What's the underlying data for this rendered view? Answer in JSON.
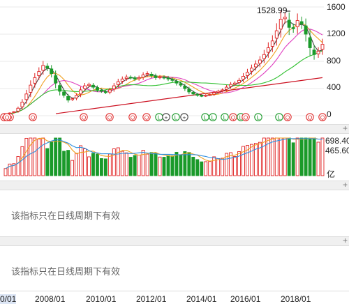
{
  "colors": {
    "up": "#e02020",
    "down": "#1a9a2a",
    "ma5": "#444444",
    "ma10": "#f0a020",
    "ma20": "#e040c0",
    "ma60": "#30c030",
    "trend": "#cc1020",
    "vol_line1": "#f0a020",
    "vol_line2": "#3090e0"
  },
  "price_axis": {
    "ticks": [
      "1600",
      "1200",
      "800",
      "400",
      "0"
    ]
  },
  "high_callout": "1528.99",
  "volume_axis": {
    "ticks": [
      "698.40",
      "465.60"
    ],
    "unit": "亿"
  },
  "indicator_panels": [
    {
      "notice": "该指标只在日线周期下有效"
    },
    {
      "notice": "该指标只在日线周期下有效"
    }
  ],
  "x_axis": {
    "first_partial": "0/01",
    "labels": [
      "2008/01",
      "2010/01",
      "2012/01",
      "2014/01",
      "2016/01",
      "2018/01"
    ]
  },
  "event_markers": [
    "Q",
    "Q",
    "Q",
    "Q",
    "Q",
    "Q",
    "Q",
    "L",
    "+",
    "L",
    "+",
    "L",
    "L",
    "L",
    "Q",
    "L",
    "Q",
    "L",
    "L",
    "Q",
    "Q",
    "Q",
    "Q"
  ],
  "chart_data": {
    "type": "candlestick",
    "ylim": [
      0,
      1600
    ],
    "series": [
      {
        "name": "price_close",
        "values": [
          20,
          40,
          60,
          110,
          200,
          320,
          450,
          560,
          650,
          740,
          700,
          620,
          480,
          360,
          300,
          230,
          250,
          300,
          380,
          440,
          460,
          420,
          380,
          360,
          340,
          380,
          440,
          500,
          540,
          570,
          560,
          540,
          560,
          600,
          620,
          590,
          560,
          570,
          560,
          540,
          520,
          480,
          450,
          400,
          350,
          320,
          300,
          290,
          300,
          310,
          340,
          360,
          380,
          420,
          460,
          480,
          520,
          580,
          640,
          700,
          760,
          820,
          900,
          1000,
          1100,
          1250,
          1420,
          1450,
          1300,
          1280,
          1400,
          1350,
          1200,
          1000,
          900,
          950,
          1050
        ]
      }
    ]
  }
}
